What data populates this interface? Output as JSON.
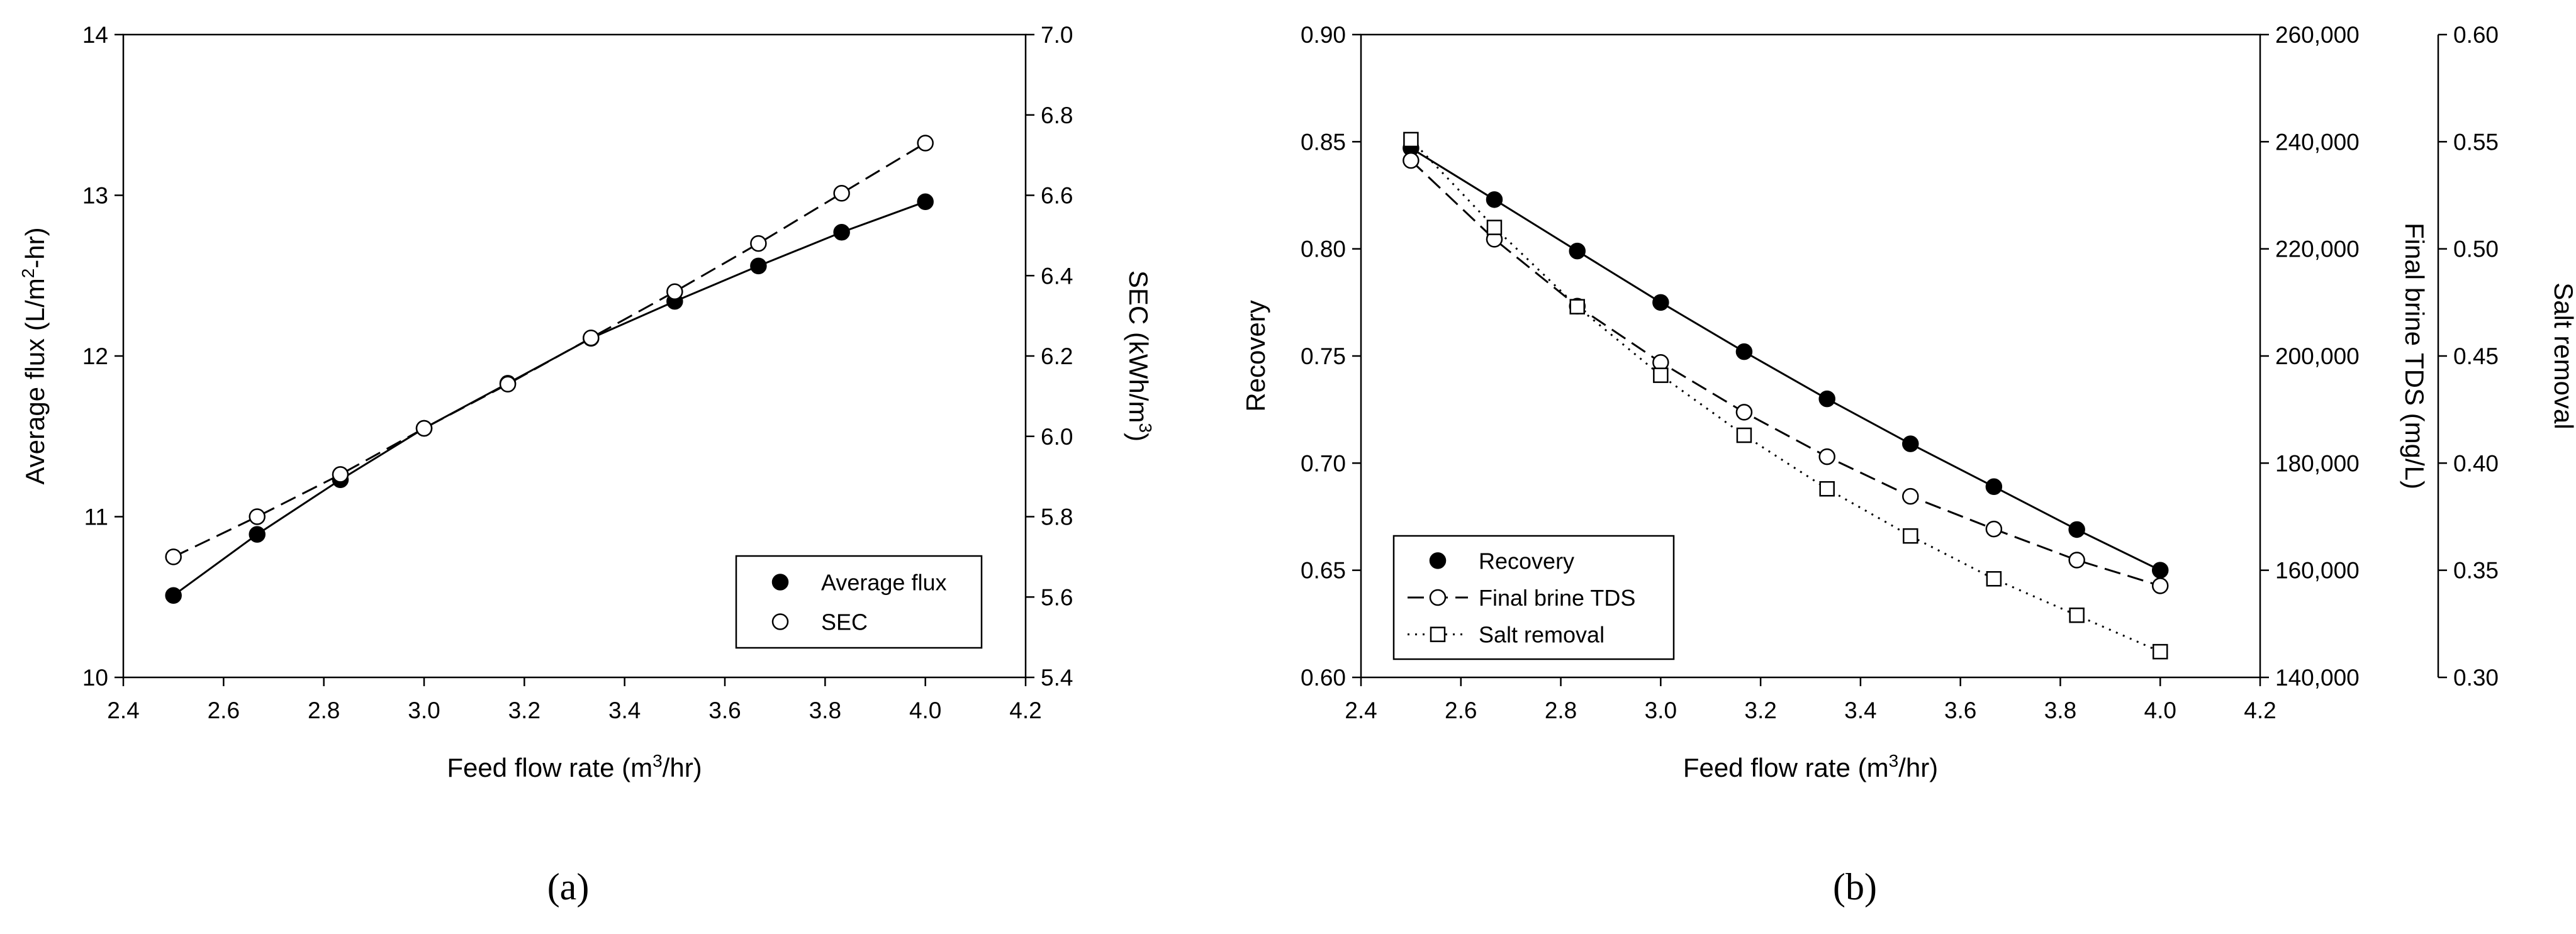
{
  "chart_data": [
    {
      "type": "line",
      "panel_label": "(a)",
      "x": [
        2.5,
        2.667,
        2.833,
        3.0,
        3.167,
        3.333,
        3.5,
        3.667,
        3.833,
        4.0
      ],
      "xlim": [
        2.4,
        4.2
      ],
      "xticks": [
        2.4,
        2.6,
        2.8,
        3.0,
        3.2,
        3.4,
        3.6,
        3.8,
        4.0,
        4.2
      ],
      "xtick_labels": [
        "2.4",
        "2.6",
        "2.8",
        "3.0",
        "3.2",
        "3.4",
        "3.6",
        "3.8",
        "4.0",
        "4.2"
      ],
      "xlabel": {
        "pre": "Feed flow rate (m",
        "sup": "3",
        "post": "/hr)"
      },
      "axes": [
        {
          "side": "left",
          "lim": [
            10,
            14
          ],
          "ticks": [
            10,
            11,
            12,
            13,
            14
          ],
          "tick_labels": [
            "10",
            "11",
            "12",
            "13",
            "14"
          ],
          "label": {
            "pre": "Average flux (L/m",
            "sup": "2",
            "post": "-hr)"
          }
        },
        {
          "side": "right",
          "lim": [
            5.4,
            7.0
          ],
          "ticks": [
            5.4,
            5.6,
            5.8,
            6.0,
            6.2,
            6.4,
            6.6,
            6.8,
            7.0
          ],
          "tick_labels": [
            "5.4",
            "5.6",
            "5.8",
            "6.0",
            "6.2",
            "6.4",
            "6.6",
            "6.8",
            "7.0"
          ],
          "label": {
            "pre": "SEC (kWh/m",
            "sup": "3",
            "post": ")"
          }
        }
      ],
      "series": [
        {
          "name": "Average flux",
          "axis": 0,
          "marker": "filled-circle",
          "line": "solid",
          "values": [
            10.51,
            10.89,
            11.23,
            11.55,
            11.83,
            12.11,
            12.34,
            12.56,
            12.77,
            12.96
          ]
        },
        {
          "name": "SEC",
          "axis": 1,
          "marker": "open-circle",
          "line": "dashed",
          "values": [
            5.7,
            5.8,
            5.905,
            6.02,
            6.13,
            6.245,
            6.36,
            6.48,
            6.605,
            6.73
          ]
        }
      ],
      "legend": "lower-right"
    },
    {
      "type": "line",
      "panel_label": "(b)",
      "x": [
        2.5,
        2.667,
        2.833,
        3.0,
        3.167,
        3.333,
        3.5,
        3.667,
        3.833,
        4.0
      ],
      "xlim": [
        2.4,
        4.2
      ],
      "xticks": [
        2.4,
        2.6,
        2.8,
        3.0,
        3.2,
        3.4,
        3.6,
        3.8,
        4.0,
        4.2
      ],
      "xtick_labels": [
        "2.4",
        "2.6",
        "2.8",
        "3.0",
        "3.2",
        "3.4",
        "3.6",
        "3.8",
        "4.0",
        "4.2"
      ],
      "xlabel": {
        "pre": "Feed flow rate (m",
        "sup": "3",
        "post": "/hr)"
      },
      "axes": [
        {
          "side": "left",
          "lim": [
            0.6,
            0.9
          ],
          "ticks": [
            0.6,
            0.65,
            0.7,
            0.75,
            0.8,
            0.85,
            0.9
          ],
          "tick_labels": [
            "0.60",
            "0.65",
            "0.70",
            "0.75",
            "0.80",
            "0.85",
            "0.90"
          ],
          "label": {
            "pre": "Recovery",
            "sup": "",
            "post": ""
          }
        },
        {
          "side": "right",
          "lim": [
            140000,
            260000
          ],
          "ticks": [
            140000,
            160000,
            180000,
            200000,
            220000,
            240000,
            260000
          ],
          "tick_labels": [
            "140,000",
            "160,000",
            "180,000",
            "200,000",
            "220,000",
            "240,000",
            "260,000"
          ],
          "label": {
            "pre": "Final brine TDS (mg/L)",
            "sup": "",
            "post": ""
          }
        },
        {
          "side": "right-outer",
          "lim": [
            0.3,
            0.6
          ],
          "ticks": [
            0.3,
            0.35,
            0.4,
            0.45,
            0.5,
            0.55,
            0.6
          ],
          "tick_labels": [
            "0.30",
            "0.35",
            "0.40",
            "0.45",
            "0.50",
            "0.55",
            "0.60"
          ],
          "label": {
            "pre": "Salt removal",
            "sup": "",
            "post": ""
          }
        }
      ],
      "series": [
        {
          "name": "Recovery",
          "axis": 0,
          "marker": "filled-circle",
          "line": "solid",
          "values": [
            0.847,
            0.823,
            0.799,
            0.775,
            0.752,
            0.73,
            0.709,
            0.689,
            0.669,
            0.65
          ]
        },
        {
          "name": "Final brine TDS",
          "axis": 1,
          "marker": "open-circle",
          "line": "dashed",
          "values": [
            236500,
            221800,
            209300,
            198800,
            189500,
            181200,
            173800,
            167700,
            161900,
            157100
          ]
        },
        {
          "name": "Salt removal",
          "axis": 2,
          "marker": "open-square",
          "line": "dotted",
          "values": [
            0.551,
            0.51,
            0.473,
            0.441,
            0.413,
            0.388,
            0.366,
            0.346,
            0.329,
            0.312
          ]
        }
      ],
      "legend": "lower-left"
    }
  ]
}
